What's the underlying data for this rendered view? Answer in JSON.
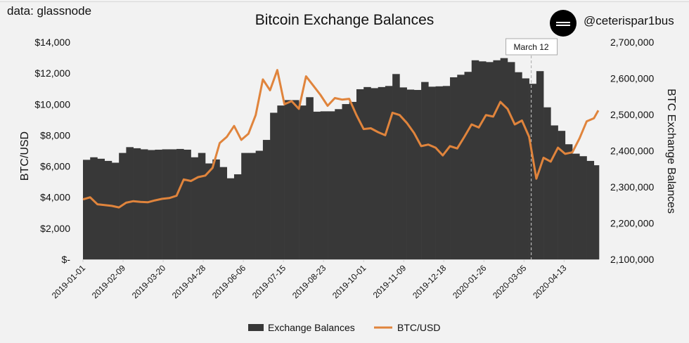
{
  "header": {
    "source": "data: glassnode",
    "title": "Bitcoin Exchange Balances",
    "handle": "@ceterispar1bus",
    "logo_icon": "circle-double-line-logo"
  },
  "chart_data": {
    "type": "bar+line",
    "title": "Bitcoin Exchange Balances",
    "ylabel_left": "BTC/USD",
    "ylabel_right": "BTC Exchange Balances",
    "ylim_left": [
      0,
      14000
    ],
    "ylim_right": [
      2100000,
      2700000
    ],
    "yticks_left": [
      "$-",
      "$2,000",
      "$4,000",
      "$6,000",
      "$8,000",
      "$10,000",
      "$12,000",
      "$14,000"
    ],
    "yticks_right": [
      "2,100,000",
      "2,200,000",
      "2,300,000",
      "2,400,000",
      "2,500,000",
      "2,600,000",
      "2,700,000"
    ],
    "xlim": [
      "2019-01-01",
      "2020-05-19"
    ],
    "xticks": [
      "2019-01-01",
      "2019-02-09",
      "2019-03-20",
      "2019-04-28",
      "2019-06-06",
      "2019-07-15",
      "2019-08-23",
      "2019-10-01",
      "2019-11-09",
      "2019-12-18",
      "2020-01-26",
      "2020-03-05",
      "2020-04-13"
    ],
    "grid": false,
    "legend_position": "bottom",
    "annotation": {
      "label": "March 12",
      "date": "2020-03-12"
    },
    "x": [
      "2019-01-01",
      "2019-01-08",
      "2019-01-15",
      "2019-01-22",
      "2019-01-29",
      "2019-02-05",
      "2019-02-12",
      "2019-02-19",
      "2019-02-26",
      "2019-03-05",
      "2019-03-12",
      "2019-03-19",
      "2019-03-26",
      "2019-04-02",
      "2019-04-09",
      "2019-04-16",
      "2019-04-23",
      "2019-04-30",
      "2019-05-07",
      "2019-05-14",
      "2019-05-21",
      "2019-05-28",
      "2019-06-04",
      "2019-06-11",
      "2019-06-18",
      "2019-06-25",
      "2019-07-02",
      "2019-07-09",
      "2019-07-16",
      "2019-07-23",
      "2019-07-30",
      "2019-08-06",
      "2019-08-13",
      "2019-08-20",
      "2019-08-27",
      "2019-09-03",
      "2019-09-10",
      "2019-09-17",
      "2019-09-24",
      "2019-10-01",
      "2019-10-08",
      "2019-10-15",
      "2019-10-22",
      "2019-10-29",
      "2019-11-05",
      "2019-11-12",
      "2019-11-19",
      "2019-11-26",
      "2019-12-03",
      "2019-12-10",
      "2019-12-17",
      "2019-12-24",
      "2019-12-31",
      "2020-01-07",
      "2020-01-14",
      "2020-01-21",
      "2020-01-28",
      "2020-02-04",
      "2020-02-11",
      "2020-02-18",
      "2020-02-25",
      "2020-03-03",
      "2020-03-10",
      "2020-03-17",
      "2020-03-24",
      "2020-03-31",
      "2020-04-07",
      "2020-04-14",
      "2020-04-21",
      "2020-04-28",
      "2020-05-05",
      "2020-05-12",
      "2020-05-19"
    ],
    "series": [
      {
        "name": "Exchange Balances",
        "type": "bar",
        "axis": "right",
        "color": "#383838",
        "values": [
          2375000,
          2382000,
          2378000,
          2372000,
          2367000,
          2394000,
          2410000,
          2407000,
          2404000,
          2402000,
          2403000,
          2404000,
          2404000,
          2405000,
          2403000,
          2382000,
          2394000,
          2365000,
          2376000,
          2355000,
          2324000,
          2335000,
          2394000,
          2394000,
          2400000,
          2430000,
          2505000,
          2525000,
          2540000,
          2540000,
          2525000,
          2548000,
          2508000,
          2509000,
          2509000,
          2515000,
          2529000,
          2535000,
          2570000,
          2576000,
          2573000,
          2576000,
          2579000,
          2612000,
          2575000,
          2569000,
          2568000,
          2590000,
          2577000,
          2578000,
          2579000,
          2603000,
          2610000,
          2618000,
          2650000,
          2647000,
          2645000,
          2650000,
          2656000,
          2645000,
          2617000,
          2600000,
          2585000,
          2620000,
          2520000,
          2470000,
          2455000,
          2418000,
          2392000,
          2385000,
          2372000,
          2360000,
          2320000
        ]
      },
      {
        "name": "BTC/USD",
        "type": "line",
        "axis": "left",
        "color": "#e0843c",
        "values": [
          3864,
          4000,
          3550,
          3500,
          3450,
          3350,
          3650,
          3750,
          3700,
          3680,
          3800,
          3900,
          3950,
          4100,
          5150,
          5050,
          5300,
          5400,
          5900,
          7500,
          7900,
          8600,
          7700,
          8100,
          9300,
          11600,
          10900,
          12200,
          10000,
          10200,
          9700,
          11800,
          11200,
          10600,
          9900,
          10400,
          10300,
          10350,
          9300,
          8400,
          8450,
          8200,
          8000,
          9450,
          9300,
          8800,
          8150,
          7300,
          7400,
          7200,
          6700,
          7300,
          7150,
          7900,
          8700,
          8500,
          9300,
          9200,
          10150,
          9700,
          8700,
          8950,
          7900,
          5200,
          6550,
          6300,
          7200,
          6800,
          6900,
          7800,
          8900,
          9100,
          9600
        ]
      }
    ]
  }
}
